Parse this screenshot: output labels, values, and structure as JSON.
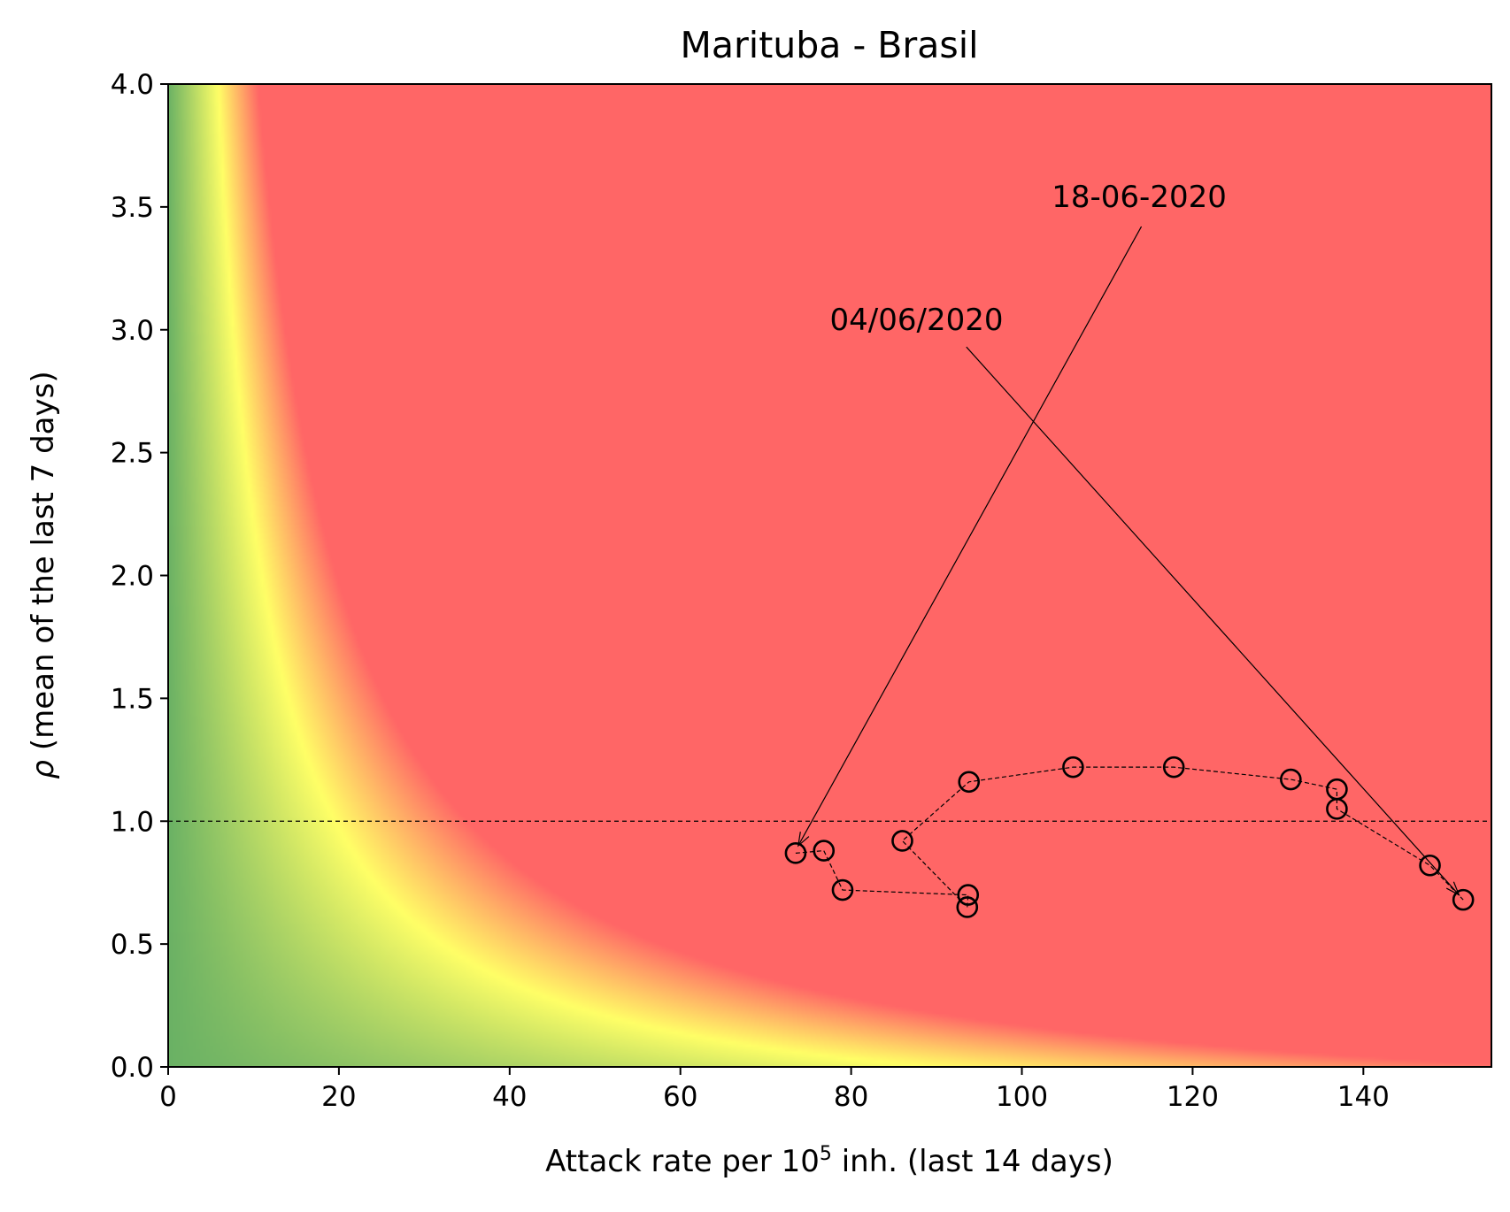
{
  "chart_data": {
    "type": "scatter",
    "title": "Marituba - Brasil",
    "xlabel": {
      "prefix": "Attack rate per 10",
      "sup": "5",
      "suffix": " inh. (last 14 days)"
    },
    "ylabel": {
      "rho": "ρ",
      "rest": " (mean of the last 7 days)"
    },
    "xlim": [
      0,
      155
    ],
    "ylim": [
      0,
      4.0
    ],
    "x_ticks": [
      0,
      20,
      40,
      60,
      80,
      100,
      120,
      140
    ],
    "y_ticks": [
      0.0,
      0.5,
      1.0,
      1.5,
      2.0,
      2.5,
      3.0,
      3.5,
      4.0
    ],
    "reference_line": {
      "y": 1.0,
      "style": "dashed",
      "color": "#000000"
    },
    "background": {
      "type": "risk-heatmap",
      "colors": {
        "low": "#6ab164",
        "mid": "#ffff66",
        "high": "#ff6666"
      }
    },
    "series": [
      {
        "marker": "open-circle",
        "line": "dashed",
        "points": [
          [
            73.5,
            0.87
          ],
          [
            76.8,
            0.88
          ],
          [
            79.0,
            0.72
          ],
          [
            93.7,
            0.7
          ],
          [
            93.6,
            0.65
          ],
          [
            86.0,
            0.92
          ],
          [
            93.8,
            1.16
          ],
          [
            106.0,
            1.22
          ],
          [
            117.8,
            1.22
          ],
          [
            131.5,
            1.17
          ],
          [
            136.9,
            1.13
          ],
          [
            136.9,
            1.05
          ],
          [
            147.8,
            0.82
          ],
          [
            151.7,
            0.68
          ]
        ]
      }
    ],
    "annotations": [
      {
        "text": "04/06/2020",
        "text_x": 77.5,
        "text_y": 3.0,
        "tail": [
          93.5,
          2.93
        ],
        "target": [
          151.2,
          0.7
        ]
      },
      {
        "text": "18-06-2020",
        "text_x": 103.5,
        "text_y": 3.5,
        "tail": [
          114.0,
          3.42
        ],
        "target": [
          73.8,
          0.9
        ]
      }
    ]
  }
}
